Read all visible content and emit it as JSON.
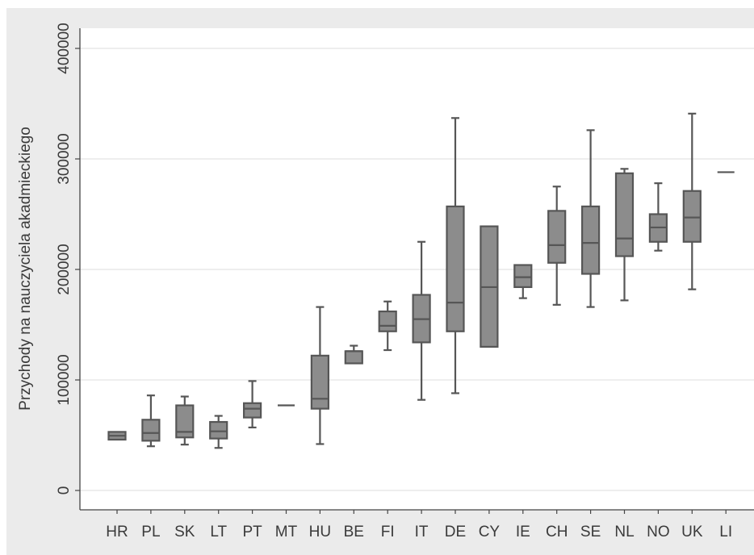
{
  "chart_data": {
    "type": "boxplot",
    "ylabel": "Przychody na nauczyciela akadmieckiego",
    "xlabel": "",
    "ylim": [
      0,
      400000
    ],
    "yticks": [
      0,
      100000,
      200000,
      300000,
      400000
    ],
    "ytick_labels": [
      "0",
      "100000",
      "200000",
      "300000",
      "400000"
    ],
    "grid": true,
    "colors": {
      "box_fill": "#8c8c8c",
      "box_stroke": "#565656",
      "plot_bg": "#ffffff",
      "frame_bg": "#ebebeb",
      "grid": "#e8e8e8"
    },
    "categories": [
      "HR",
      "PL",
      "SK",
      "LT",
      "PT",
      "MT",
      "HU",
      "BE",
      "FI",
      "IT",
      "DE",
      "CY",
      "IE",
      "CH",
      "SE",
      "NL",
      "NO",
      "UK",
      "LI"
    ],
    "boxes": [
      {
        "label": "HR",
        "min": 46000,
        "q1": 46000,
        "median": 49500,
        "q3": 53000,
        "max": 53000
      },
      {
        "label": "PL",
        "min": 40000,
        "q1": 45000,
        "median": 52000,
        "q3": 64000,
        "max": 86000
      },
      {
        "label": "SK",
        "min": 41500,
        "q1": 48000,
        "median": 53000,
        "q3": 77000,
        "max": 85000
      },
      {
        "label": "LT",
        "min": 38500,
        "q1": 47000,
        "median": 53500,
        "q3": 62000,
        "max": 67500
      },
      {
        "label": "PT",
        "min": 57000,
        "q1": 66000,
        "median": 74000,
        "q3": 79000,
        "max": 99000
      },
      {
        "label": "MT",
        "min": 77000,
        "q1": 77000,
        "median": 77000,
        "q3": 77000,
        "max": 77000
      },
      {
        "label": "HU",
        "min": 42000,
        "q1": 74000,
        "median": 83000,
        "q3": 122000,
        "max": 166000
      },
      {
        "label": "BE",
        "min": 115000,
        "q1": 115000,
        "median": 126000,
        "q3": 126000,
        "max": 131000
      },
      {
        "label": "FI",
        "min": 127000,
        "q1": 144000,
        "median": 149000,
        "q3": 162000,
        "max": 171000
      },
      {
        "label": "IT",
        "min": 82000,
        "q1": 134000,
        "median": 155000,
        "q3": 177000,
        "max": 225000
      },
      {
        "label": "DE",
        "min": 88000,
        "q1": 144000,
        "median": 170000,
        "q3": 257000,
        "max": 337000
      },
      {
        "label": "CY",
        "min": 130000,
        "q1": 130000,
        "median": 184000,
        "q3": 239000,
        "max": 239000
      },
      {
        "label": "IE",
        "min": 174000,
        "q1": 184000,
        "median": 193000,
        "q3": 204000,
        "max": 204000
      },
      {
        "label": "CH",
        "min": 168000,
        "q1": 206000,
        "median": 222000,
        "q3": 253000,
        "max": 275000
      },
      {
        "label": "SE",
        "min": 166000,
        "q1": 196000,
        "median": 224000,
        "q3": 257000,
        "max": 326000
      },
      {
        "label": "NL",
        "min": 172000,
        "q1": 212000,
        "median": 228000,
        "q3": 287000,
        "max": 291000
      },
      {
        "label": "NO",
        "min": 217000,
        "q1": 225000,
        "median": 238000,
        "q3": 250000,
        "max": 278000
      },
      {
        "label": "UK",
        "min": 182000,
        "q1": 225000,
        "median": 247000,
        "q3": 271000,
        "max": 341000
      },
      {
        "label": "LI",
        "min": 288000,
        "q1": 288000,
        "median": 288000,
        "q3": 288000,
        "max": 288000
      }
    ]
  }
}
